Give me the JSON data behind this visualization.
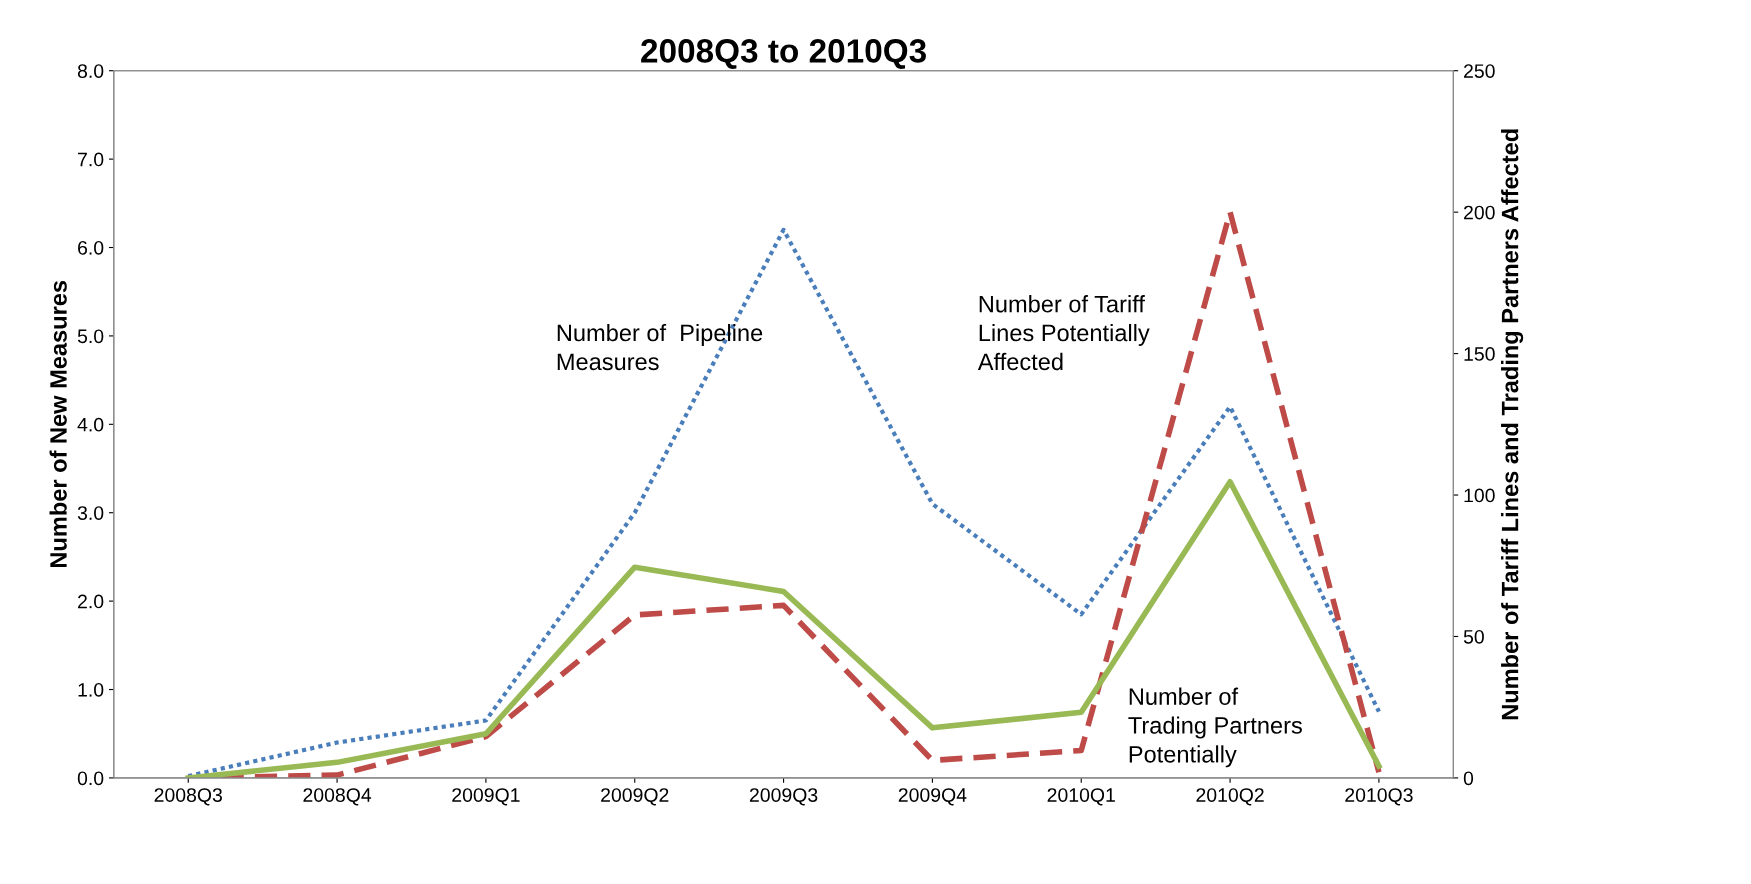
{
  "chart_data": {
    "type": "line",
    "title": "2008Q3 to 2010Q3",
    "ylabel": "Number of New Measures",
    "y2label": "Number of Tariff Lines and Trading Partners Affected",
    "categories": [
      "2008Q3",
      "2008Q4",
      "2009Q1",
      "2009Q2",
      "2009Q3",
      "2009Q4",
      "2010Q1",
      "2010Q2",
      "2010Q3"
    ],
    "series": [
      {
        "name": "Number of  Pipeline\nMeasures",
        "color": "#4a7ebb",
        "line_style": "dotted",
        "values": [
          0.02,
          0.4,
          0.65,
          3.0,
          6.2,
          3.1,
          1.85,
          4.2,
          0.75
        ]
      },
      {
        "name": "Number of Tariff\nLines Potentially\nAffected",
        "color": "#be4b48",
        "line_style": "dashed",
        "axis": "y2",
        "values": [
          0,
          1,
          14.6,
          57.6,
          61,
          6.2,
          9.7,
          200,
          2
        ]
      },
      {
        "name": "Number of\nTrading Partners\nPotentially",
        "color": "#98b954",
        "line_style": "solid",
        "axis": "y2",
        "values": [
          0,
          5.5,
          15.6,
          74.5,
          65.9,
          17.7,
          23.2,
          104.7,
          4.2
        ]
      }
    ],
    "ylim": [
      0,
      8
    ],
    "yticks": [
      {
        "value": 0,
        "label": "0.0"
      },
      {
        "value": 1,
        "label": "1.0"
      },
      {
        "value": 2,
        "label": "2.0"
      },
      {
        "value": 3,
        "label": "3.0"
      },
      {
        "value": 4,
        "label": "4.0"
      },
      {
        "value": 5,
        "label": "5.0"
      },
      {
        "value": 6,
        "label": "6.0"
      },
      {
        "value": 7,
        "label": "7.0"
      },
      {
        "value": 8,
        "label": "8.0"
      }
    ],
    "y2lim": [
      0,
      250
    ],
    "y2ticks": [
      0,
      50,
      100,
      150,
      200,
      250
    ],
    "grid": false,
    "legend": false,
    "marker": "none"
  }
}
